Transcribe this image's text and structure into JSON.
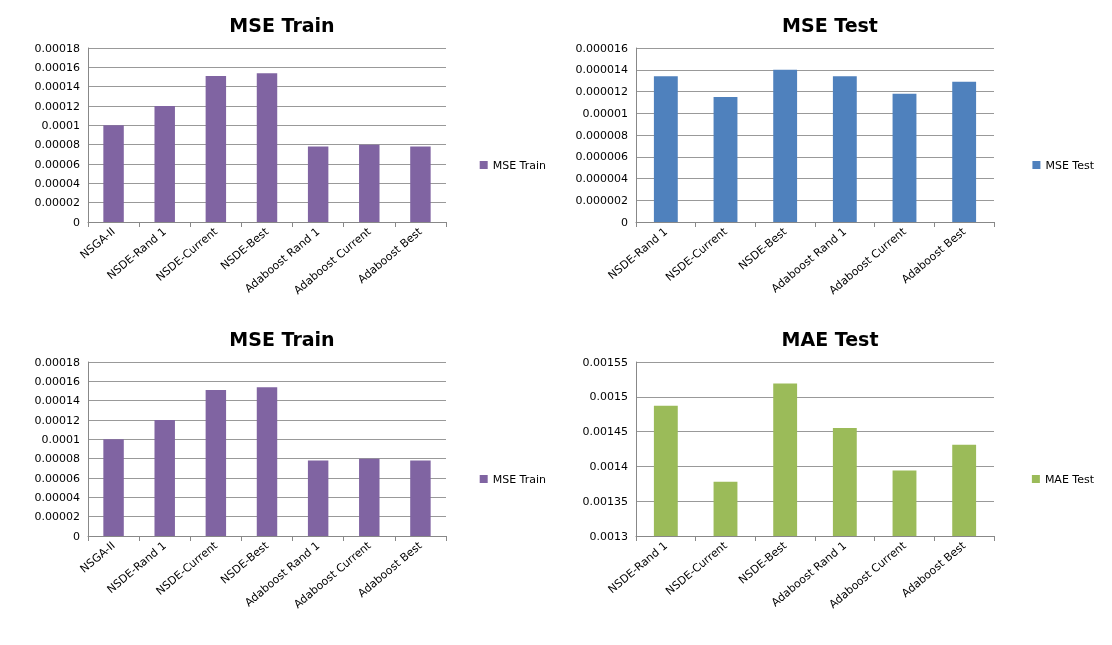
{
  "chart_data": [
    {
      "type": "bar",
      "title": "MSE Train",
      "categories": [
        "NSGA-II",
        "NSDE-Rand 1",
        "NSDE-Current",
        "NSDE-Best",
        "Adaboost Rand 1",
        "Adaboost Current",
        "Adaboost Best"
      ],
      "series": [
        {
          "name": "MSE Train",
          "color": "#8064a2",
          "values": [
            0.0001,
            0.00012,
            0.000151,
            0.000154,
            7.8e-05,
            8e-05,
            7.8e-05
          ]
        }
      ],
      "ylim": [
        0,
        0.00018
      ],
      "yticks": [
        0,
        {
          "value": 2e-05,
          "label": "0.00002"
        },
        {
          "value": 4e-05,
          "label": "0.00004"
        },
        {
          "value": 6e-05,
          "label": "0.00006"
        },
        {
          "value": 8e-05,
          "label": "0.00008"
        },
        0.0001,
        0.00012,
        0.00014,
        0.00016,
        0.00018
      ],
      "grid": "y",
      "legend": "right"
    },
    {
      "type": "bar",
      "title": "MSE Test",
      "categories": [
        "NSDE-Rand 1",
        "NSDE-Current",
        "NSDE-Best",
        "Adaboost Rand 1",
        "Adaboost Current",
        "Adaboost Best"
      ],
      "series": [
        {
          "name": "MSE Test",
          "color": "#4f81bd",
          "values": [
            1.34e-05,
            1.15e-05,
            1.4e-05,
            1.34e-05,
            1.18e-05,
            1.29e-05
          ]
        }
      ],
      "ylim": [
        0,
        1.6e-05
      ],
      "yticks": [
        0,
        {
          "value": 2e-06,
          "label": "0.000002"
        },
        {
          "value": 4e-06,
          "label": "0.000004"
        },
        {
          "value": 6e-06,
          "label": "0.000006"
        },
        {
          "value": 8e-06,
          "label": "0.000008"
        },
        {
          "value": 1e-05,
          "label": "0.00001"
        },
        {
          "value": 1.2e-05,
          "label": "0.000012"
        },
        {
          "value": 1.4e-05,
          "label": "0.000014"
        },
        {
          "value": 1.6e-05,
          "label": "0.000016"
        }
      ],
      "grid": "y",
      "legend": "right"
    },
    {
      "type": "bar",
      "title": "MSE Train",
      "categories": [
        "NSGA-II",
        "NSDE-Rand 1",
        "NSDE-Current",
        "NSDE-Best",
        "Adaboost Rand 1",
        "Adaboost Current",
        "Adaboost Best"
      ],
      "series": [
        {
          "name": "MSE Train",
          "color": "#8064a2",
          "values": [
            0.0001,
            0.00012,
            0.000151,
            0.000154,
            7.8e-05,
            8e-05,
            7.8e-05
          ]
        }
      ],
      "ylim": [
        0,
        0.00018
      ],
      "yticks": [
        0,
        {
          "value": 2e-05,
          "label": "0.00002"
        },
        {
          "value": 4e-05,
          "label": "0.00004"
        },
        {
          "value": 6e-05,
          "label": "0.00006"
        },
        {
          "value": 8e-05,
          "label": "0.00008"
        },
        0.0001,
        0.00012,
        0.00014,
        0.00016,
        0.00018
      ],
      "grid": "y",
      "legend": "right"
    },
    {
      "type": "bar",
      "title": "MAE Test",
      "categories": [
        "NSDE-Rand 1",
        "NSDE-Current",
        "NSDE-Best",
        "Adaboost Rand 1",
        "Adaboost Current",
        "Adaboost Best"
      ],
      "series": [
        {
          "name": "MAE Test",
          "color": "#9bbb59",
          "values": [
            0.001487,
            0.001378,
            0.001519,
            0.001455,
            0.001394,
            0.001431
          ]
        }
      ],
      "ylim": [
        0.0013,
        0.00155
      ],
      "yticks": [
        0.0013,
        0.00135,
        0.0014,
        0.00145,
        0.0015,
        0.00155
      ],
      "grid": "y",
      "legend": "right"
    }
  ]
}
